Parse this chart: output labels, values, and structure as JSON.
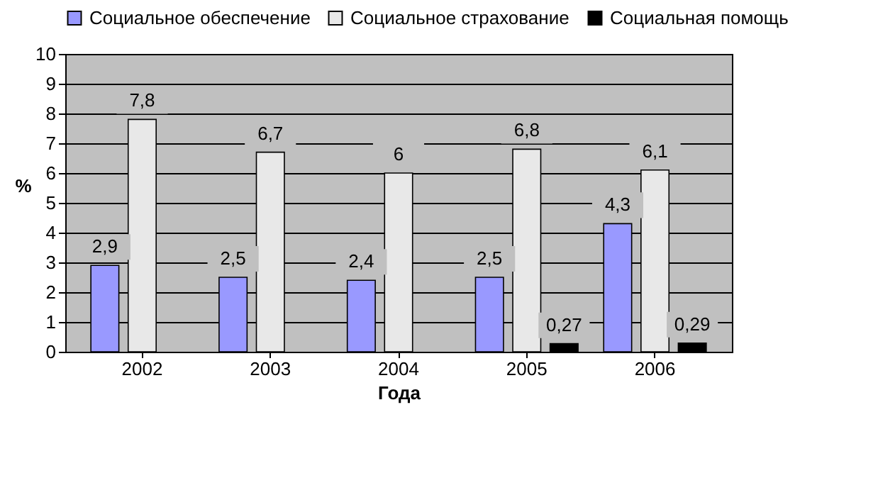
{
  "chart_data": {
    "type": "bar",
    "xlabel": "Года",
    "ylabel": "%",
    "categories": [
      "2002",
      "2003",
      "2004",
      "2005",
      "2006"
    ],
    "series": [
      {
        "name": "Социальное обеспечение",
        "color": "#9999ff",
        "values": [
          2.9,
          2.5,
          2.4,
          2.5,
          4.3
        ],
        "value_labels": [
          "2,9",
          "2,5",
          "2,4",
          "2,5",
          "4,3"
        ]
      },
      {
        "name": "Социальное страхование",
        "color": "#e8e8e8",
        "values": [
          7.8,
          6.7,
          6,
          6.8,
          6.1
        ],
        "value_labels": [
          "7,8",
          "6,7",
          "6",
          "6,8",
          "6,1"
        ]
      },
      {
        "name": "Социальная помощь",
        "color": "#000000",
        "values": [
          null,
          null,
          null,
          0.27,
          0.29
        ],
        "value_labels": [
          null,
          null,
          null,
          "0,27",
          "0,29"
        ]
      }
    ],
    "ylim": [
      0,
      10
    ],
    "yticks": [
      0,
      1,
      2,
      3,
      4,
      5,
      6,
      7,
      8,
      9,
      10
    ],
    "grid": "y",
    "legend": "top"
  }
}
